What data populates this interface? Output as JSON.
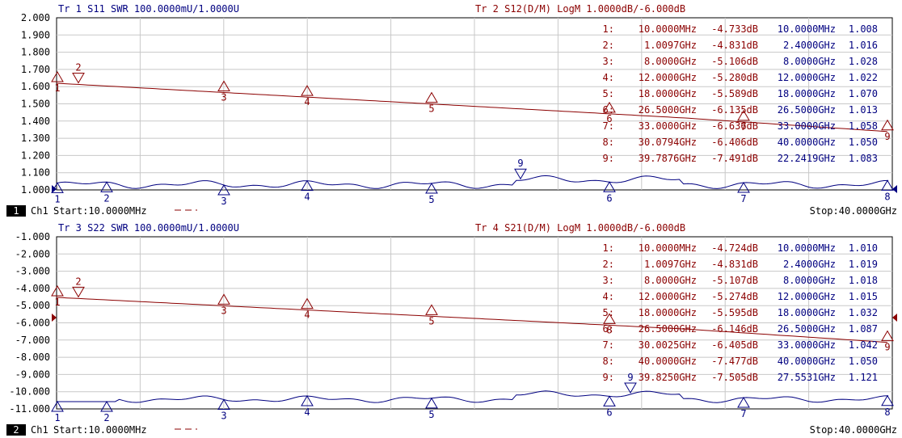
{
  "channels": [
    {
      "number": "1",
      "label": "Ch1",
      "start": "Start:10.0000MHz",
      "stop": "Stop:40.0000GHz",
      "y_ticks": [
        "2.000",
        "1.900",
        "1.800",
        "1.700",
        "1.600",
        "1.500",
        "1.400",
        "1.300",
        "1.200",
        "1.100",
        "1.000"
      ],
      "title_left": "Tr 1  S11 SWR 100.0000mU/1.0000U",
      "title_right": "Tr 2  S12(D/M) LogM 1.0000dB/-6.000dB",
      "marker_table": [
        {
          "idx": "1:",
          "freq": "10.0000MHz",
          "val": "-4.733dB",
          "freq2": "10.0000MHz",
          "val2": "1.008"
        },
        {
          "idx": "2:",
          "freq": "1.0097GHz",
          "val": "-4.831dB",
          "freq2": "2.4000GHz",
          "val2": "1.016"
        },
        {
          "idx": "3:",
          "freq": "8.0000GHz",
          "val": "-5.106dB",
          "freq2": "8.0000GHz",
          "val2": "1.028"
        },
        {
          "idx": "4:",
          "freq": "12.0000GHz",
          "val": "-5.280dB",
          "freq2": "12.0000GHz",
          "val2": "1.022"
        },
        {
          "idx": "5:",
          "freq": "18.0000GHz",
          "val": "-5.589dB",
          "freq2": "18.0000GHz",
          "val2": "1.070"
        },
        {
          "idx": "6:",
          "freq": "26.5000GHz",
          "val": "-6.135dB",
          "freq2": "26.5000GHz",
          "val2": "1.013"
        },
        {
          "idx": "7:",
          "freq": "33.0000GHz",
          "val": "-6.636dB",
          "freq2": "33.0000GHz",
          "val2": "1.058"
        },
        {
          "idx": "8:",
          "freq": "30.0794GHz",
          "val": "-6.406dB",
          "freq2": "40.0000GHz",
          "val2": "1.050"
        },
        {
          "idx": "9:",
          "freq": "39.7876GHz",
          "val": "-7.491dB",
          "freq2": "22.2419GHz",
          "val2": "1.083"
        }
      ],
      "red_markers": [
        "1",
        "2",
        "3",
        "4",
        "5",
        "6",
        "7",
        "9"
      ],
      "blue_markers": [
        "1",
        "2",
        "3",
        "4",
        "5",
        "6",
        "7",
        "8",
        "9"
      ]
    },
    {
      "number": "2",
      "label": "Ch1",
      "start": "Start:10.0000MHz",
      "stop": "Stop:40.0000GHz",
      "y_ticks": [
        "-1.000",
        "-2.000",
        "-3.000",
        "-4.000",
        "-5.000",
        "-6.000",
        "-7.000",
        "-8.000",
        "-9.000",
        "-10.000",
        "-11.000"
      ],
      "title_left": "Tr 3  S22 SWR 100.0000mU/1.0000U",
      "title_right": "Tr 4  S21(D/M) LogM 1.0000dB/-6.000dB",
      "marker_table": [
        {
          "idx": "1:",
          "freq": "10.0000MHz",
          "val": "-4.724dB",
          "freq2": "10.0000MHz",
          "val2": "1.010"
        },
        {
          "idx": "2:",
          "freq": "1.0097GHz",
          "val": "-4.831dB",
          "freq2": "2.4000GHz",
          "val2": "1.019"
        },
        {
          "idx": "3:",
          "freq": "8.0000GHz",
          "val": "-5.107dB",
          "freq2": "8.0000GHz",
          "val2": "1.018"
        },
        {
          "idx": "4:",
          "freq": "12.0000GHz",
          "val": "-5.274dB",
          "freq2": "12.0000GHz",
          "val2": "1.015"
        },
        {
          "idx": "5:",
          "freq": "18.0000GHz",
          "val": "-5.595dB",
          "freq2": "18.0000GHz",
          "val2": "1.032"
        },
        {
          "idx": "6:",
          "freq": "26.5000GHz",
          "val": "-6.146dB",
          "freq2": "26.5000GHz",
          "val2": "1.087"
        },
        {
          "idx": "7:",
          "freq": "30.0025GHz",
          "val": "-6.405dB",
          "freq2": "33.0000GHz",
          "val2": "1.042"
        },
        {
          "idx": "8:",
          "freq": "40.0000GHz",
          "val": "-7.477dB",
          "freq2": "40.0000GHz",
          "val2": "1.050"
        },
        {
          "idx": "9:",
          "freq": "39.8250GHz",
          "val": "-7.505dB",
          "freq2": "27.5531GHz",
          "val2": "1.121"
        }
      ],
      "red_markers": [
        "1",
        "2",
        "3",
        "4",
        "5",
        "8",
        "9"
      ],
      "blue_markers": [
        "1",
        "2",
        "3",
        "4",
        "5",
        "6",
        "7",
        "8",
        "9"
      ]
    }
  ],
  "colors": {
    "red": "#8b0000",
    "blue": "#000080",
    "grid": "#c8c8c8",
    "text": "#000000"
  },
  "chart_data": [
    {
      "type": "line",
      "x_range": [
        0.01,
        40
      ],
      "series": [
        {
          "name": "Tr 1  S11 SWR 100.0000mU/1.0000U",
          "color": "#000080",
          "x": [
            0.01,
            2.4,
            8,
            12,
            18,
            22.2419,
            26.5,
            33,
            40
          ],
          "y": [
            1.008,
            1.016,
            1.028,
            1.022,
            1.07,
            1.083,
            1.013,
            1.058,
            1.05
          ]
        },
        {
          "name": "Tr 2  S12(D/M) LogM 1.0000dB/-6.000dB",
          "color": "#8b0000",
          "x": [
            0.01,
            1.0097,
            8,
            12,
            18,
            26.5,
            30.0794,
            33,
            39.7876
          ],
          "y": [
            -4.733,
            -4.831,
            -5.106,
            -5.28,
            -5.589,
            -6.135,
            -6.406,
            -6.636,
            -7.491
          ]
        }
      ]
    },
    {
      "type": "line",
      "x_range": [
        0.01,
        40
      ],
      "series": [
        {
          "name": "Tr 3  S22 SWR 100.0000mU/1.0000U",
          "color": "#000080",
          "x": [
            0.01,
            2.4,
            8,
            12,
            18,
            26.5,
            27.5531,
            33,
            40
          ],
          "y": [
            1.01,
            1.019,
            1.018,
            1.015,
            1.032,
            1.087,
            1.121,
            1.042,
            1.05
          ]
        },
        {
          "name": "Tr 4  S21(D/M) LogM 1.0000dB/-6.000dB",
          "color": "#8b0000",
          "x": [
            0.01,
            1.0097,
            8,
            12,
            18,
            26.5,
            30.0025,
            39.825,
            40
          ],
          "y": [
            -4.724,
            -4.831,
            -5.107,
            -5.274,
            -5.595,
            -6.146,
            -6.405,
            -7.505,
            -7.477
          ]
        }
      ]
    }
  ]
}
